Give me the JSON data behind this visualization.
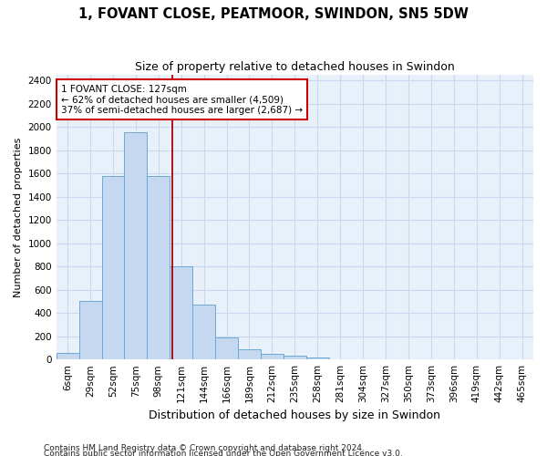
{
  "title": "1, FOVANT CLOSE, PEATMOOR, SWINDON, SN5 5DW",
  "subtitle": "Size of property relative to detached houses in Swindon",
  "xlabel": "Distribution of detached houses by size in Swindon",
  "ylabel": "Number of detached properties",
  "footer1": "Contains HM Land Registry data © Crown copyright and database right 2024.",
  "footer2": "Contains public sector information licensed under the Open Government Licence v3.0.",
  "categories": [
    "6sqm",
    "29sqm",
    "52sqm",
    "75sqm",
    "98sqm",
    "121sqm",
    "144sqm",
    "166sqm",
    "189sqm",
    "212sqm",
    "235sqm",
    "258sqm",
    "281sqm",
    "304sqm",
    "327sqm",
    "350sqm",
    "373sqm",
    "396sqm",
    "419sqm",
    "442sqm",
    "465sqm"
  ],
  "values": [
    60,
    500,
    1580,
    1950,
    1580,
    800,
    470,
    190,
    90,
    45,
    30,
    20,
    5,
    2,
    2,
    2,
    0,
    0,
    0,
    0,
    0
  ],
  "bar_color": "#c5d8f0",
  "bar_edge_color": "#6aaad4",
  "grid_color": "#c8d8ee",
  "bg_color": "#e8f0fa",
  "vline_x": 4.62,
  "vline_color": "#aa0000",
  "annotation_text": "1 FOVANT CLOSE: 127sqm\n← 62% of detached houses are smaller (4,509)\n37% of semi-detached houses are larger (2,687) →",
  "annotation_box_color": "#ffffff",
  "annotation_box_edge": "#cc0000",
  "ylim": [
    0,
    2450
  ],
  "yticks": [
    0,
    200,
    400,
    600,
    800,
    1000,
    1200,
    1400,
    1600,
    1800,
    2000,
    2200,
    2400
  ],
  "title_fontsize": 10.5,
  "subtitle_fontsize": 9,
  "tick_fontsize": 7.5,
  "ylabel_fontsize": 8,
  "xlabel_fontsize": 9,
  "annot_fontsize": 7.5,
  "footer_fontsize": 6.5
}
